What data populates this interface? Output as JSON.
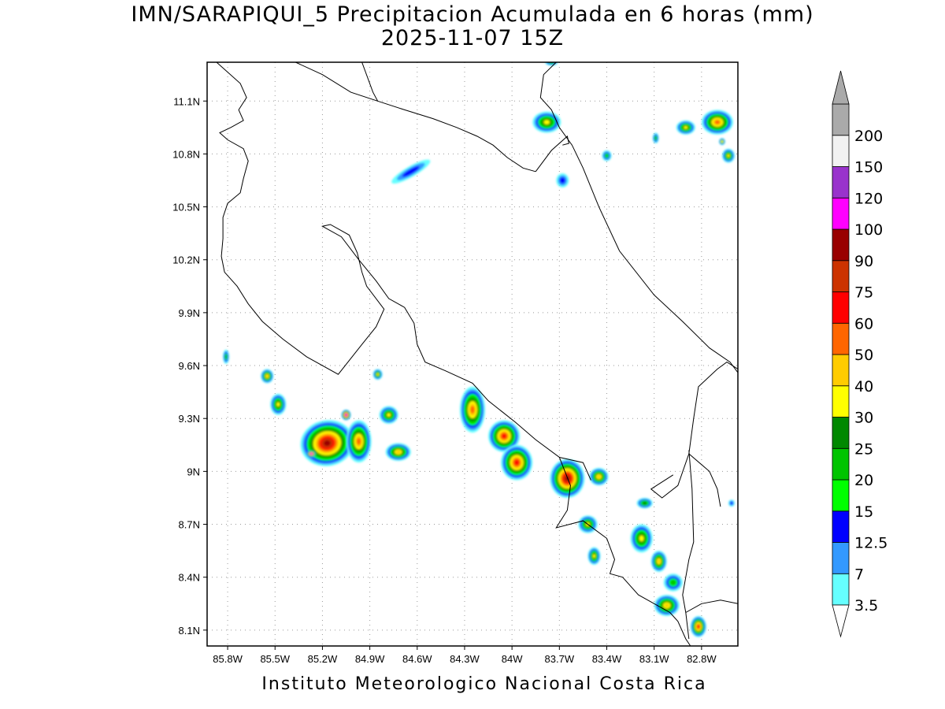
{
  "title_line1": "IMN/SARAPIQUI_5 Precipitacion Acumulada en 6 horas (mm)",
  "title_line2": "2025-11-07 15Z",
  "credit": "Instituto Meteorologico Nacional Costa Rica",
  "map": {
    "lon_range": [
      -85.93,
      -82.57
    ],
    "lat_range": [
      8.01,
      11.32
    ],
    "lon_ticks": [
      {
        "value": -85.8,
        "label": "85.8W"
      },
      {
        "value": -85.5,
        "label": "85.5W"
      },
      {
        "value": -85.2,
        "label": "85.2W"
      },
      {
        "value": -84.9,
        "label": "84.9W"
      },
      {
        "value": -84.6,
        "label": "84.6W"
      },
      {
        "value": -84.3,
        "label": "84.3W"
      },
      {
        "value": -84.0,
        "label": "84W"
      },
      {
        "value": -83.7,
        "label": "83.7W"
      },
      {
        "value": -83.4,
        "label": "83.4W"
      },
      {
        "value": -83.1,
        "label": "83.1W"
      },
      {
        "value": -82.8,
        "label": "82.8W"
      }
    ],
    "lat_ticks": [
      {
        "value": 8.1,
        "label": "8.1N"
      },
      {
        "value": 8.4,
        "label": "8.4N"
      },
      {
        "value": 8.7,
        "label": "8.7N"
      },
      {
        "value": 9.0,
        "label": "9N"
      },
      {
        "value": 9.3,
        "label": "9.3N"
      },
      {
        "value": 9.6,
        "label": "9.6N"
      },
      {
        "value": 9.9,
        "label": "9.9N"
      },
      {
        "value": 10.2,
        "label": "10.2N"
      },
      {
        "value": 10.5,
        "label": "10.5N"
      },
      {
        "value": 10.8,
        "label": "10.8N"
      },
      {
        "value": 11.1,
        "label": "11.1N"
      }
    ],
    "grid": true
  },
  "colorbar": {
    "levels": [
      {
        "label": "3.5",
        "color": "#66ffff"
      },
      {
        "label": "7",
        "color": "#3399ff"
      },
      {
        "label": "12.5",
        "color": "#0000ff"
      },
      {
        "label": "15",
        "color": "#00ff00"
      },
      {
        "label": "20",
        "color": "#00c400"
      },
      {
        "label": "25",
        "color": "#008800"
      },
      {
        "label": "30",
        "color": "#ffff00"
      },
      {
        "label": "40",
        "color": "#ffcc00"
      },
      {
        "label": "50",
        "color": "#ff6600"
      },
      {
        "label": "60",
        "color": "#ff0000"
      },
      {
        "label": "75",
        "color": "#cc3300"
      },
      {
        "label": "90",
        "color": "#990000"
      },
      {
        "label": "100",
        "color": "#ff00ff"
      },
      {
        "label": "120",
        "color": "#9933cc"
      },
      {
        "label": "150",
        "color": "#f2f2f2"
      },
      {
        "label": "200",
        "color": "#aaaaaa"
      }
    ]
  },
  "precip_cells": [
    {
      "lon": -85.17,
      "lat": 9.16,
      "rx": 0.17,
      "ry": 0.13,
      "rot": -10,
      "level": 11
    },
    {
      "lon": -84.97,
      "lat": 9.17,
      "rx": 0.08,
      "ry": 0.12,
      "rot": 0,
      "level": 8
    },
    {
      "lon": -84.72,
      "lat": 9.11,
      "rx": 0.08,
      "ry": 0.05,
      "rot": 0,
      "level": 7
    },
    {
      "lon": -84.78,
      "lat": 9.32,
      "rx": 0.06,
      "ry": 0.05,
      "rot": 0,
      "level": 6
    },
    {
      "lon": -85.48,
      "lat": 9.38,
      "rx": 0.05,
      "ry": 0.06,
      "rot": 0,
      "level": 6
    },
    {
      "lon": -85.55,
      "lat": 9.54,
      "rx": 0.04,
      "ry": 0.04,
      "rot": 0,
      "level": 7
    },
    {
      "lon": -84.85,
      "lat": 9.55,
      "rx": 0.03,
      "ry": 0.03,
      "rot": 0,
      "level": 6
    },
    {
      "lon": -85.81,
      "lat": 9.65,
      "rx": 0.02,
      "ry": 0.04,
      "rot": 0,
      "level": 4
    },
    {
      "lon": -85.05,
      "lat": 9.32,
      "rx": 0.03,
      "ry": 0.03,
      "rot": 0,
      "level": 12
    },
    {
      "lon": -85.27,
      "lat": 9.1,
      "rx": 0.03,
      "ry": 0.02,
      "rot": 0,
      "level": 12
    },
    {
      "lon": -84.25,
      "lat": 9.35,
      "rx": 0.08,
      "ry": 0.13,
      "rot": 0,
      "level": 8
    },
    {
      "lon": -84.05,
      "lat": 9.2,
      "rx": 0.1,
      "ry": 0.09,
      "rot": 0,
      "level": 9
    },
    {
      "lon": -83.97,
      "lat": 9.05,
      "rx": 0.1,
      "ry": 0.1,
      "rot": 0,
      "level": 9
    },
    {
      "lon": -83.65,
      "lat": 8.96,
      "rx": 0.11,
      "ry": 0.11,
      "rot": 0,
      "level": 11
    },
    {
      "lon": -83.45,
      "lat": 8.97,
      "rx": 0.06,
      "ry": 0.05,
      "rot": 0,
      "level": 7
    },
    {
      "lon": -83.52,
      "lat": 8.7,
      "rx": 0.06,
      "ry": 0.05,
      "rot": 0,
      "level": 6
    },
    {
      "lon": -83.48,
      "lat": 8.52,
      "rx": 0.04,
      "ry": 0.05,
      "rot": 0,
      "level": 6
    },
    {
      "lon": -83.18,
      "lat": 8.62,
      "rx": 0.07,
      "ry": 0.08,
      "rot": 0,
      "level": 6
    },
    {
      "lon": -83.07,
      "lat": 8.49,
      "rx": 0.05,
      "ry": 0.06,
      "rot": 0,
      "level": 7
    },
    {
      "lon": -83.02,
      "lat": 8.24,
      "rx": 0.08,
      "ry": 0.06,
      "rot": 0,
      "level": 7
    },
    {
      "lon": -82.82,
      "lat": 8.12,
      "rx": 0.05,
      "ry": 0.06,
      "rot": 0,
      "level": 9
    },
    {
      "lon": -83.78,
      "lat": 10.98,
      "rx": 0.09,
      "ry": 0.06,
      "rot": 0,
      "level": 6
    },
    {
      "lon": -82.7,
      "lat": 10.98,
      "rx": 0.1,
      "ry": 0.07,
      "rot": 0,
      "level": 8
    },
    {
      "lon": -82.9,
      "lat": 10.95,
      "rx": 0.06,
      "ry": 0.04,
      "rot": 0,
      "level": 6
    },
    {
      "lon": -82.63,
      "lat": 10.79,
      "rx": 0.04,
      "ry": 0.04,
      "rot": 0,
      "level": 6
    },
    {
      "lon": -82.67,
      "lat": 10.87,
      "rx": 0.02,
      "ry": 0.02,
      "rot": 0,
      "level": 6
    },
    {
      "lon": -83.4,
      "lat": 10.79,
      "rx": 0.03,
      "ry": 0.03,
      "rot": 0,
      "level": 4
    },
    {
      "lon": -83.09,
      "lat": 10.89,
      "rx": 0.02,
      "ry": 0.03,
      "rot": 0,
      "level": 4
    },
    {
      "lon": -83.75,
      "lat": 11.32,
      "rx": 0.04,
      "ry": 0.02,
      "rot": 0,
      "level": 4
    },
    {
      "lon": -84.64,
      "lat": 10.7,
      "rx": 0.14,
      "ry": 0.03,
      "rot": -30,
      "level": 2
    },
    {
      "lon": -82.61,
      "lat": 8.82,
      "rx": 0.02,
      "ry": 0.02,
      "rot": 0,
      "level": 2
    },
    {
      "lon": -83.16,
      "lat": 8.82,
      "rx": 0.05,
      "ry": 0.03,
      "rot": 0,
      "level": 5
    },
    {
      "lon": -82.98,
      "lat": 8.37,
      "rx": 0.06,
      "ry": 0.05,
      "rot": 0,
      "level": 4
    },
    {
      "lon": -83.68,
      "lat": 10.65,
      "rx": 0.04,
      "ry": 0.04,
      "rot": 0,
      "level": 2
    }
  ],
  "coastlines": [
    [
      [
        -85.87,
        11.32
      ],
      [
        -85.72,
        11.2
      ],
      [
        -85.68,
        11.12
      ],
      [
        -85.73,
        11.05
      ],
      [
        -85.7,
        10.99
      ],
      [
        -85.78,
        10.95
      ],
      [
        -85.85,
        10.92
      ],
      [
        -85.8,
        10.88
      ],
      [
        -85.7,
        10.83
      ],
      [
        -85.67,
        10.76
      ],
      [
        -85.7,
        10.66
      ],
      [
        -85.72,
        10.58
      ],
      [
        -85.8,
        10.52
      ],
      [
        -85.83,
        10.44
      ],
      [
        -85.83,
        10.32
      ],
      [
        -85.84,
        10.22
      ],
      [
        -85.82,
        10.13
      ],
      [
        -85.74,
        10.05
      ],
      [
        -85.67,
        9.95
      ],
      [
        -85.58,
        9.85
      ],
      [
        -85.45,
        9.75
      ],
      [
        -85.3,
        9.65
      ],
      [
        -85.1,
        9.55
      ],
      [
        -84.95,
        9.72
      ],
      [
        -84.86,
        9.82
      ],
      [
        -84.81,
        9.92
      ],
      [
        -84.92,
        10.05
      ],
      [
        -84.95,
        10.13
      ],
      [
        -84.98,
        10.24
      ],
      [
        -85.03,
        10.34
      ],
      [
        -85.15,
        10.4
      ],
      [
        -85.2,
        10.39
      ],
      [
        -85.08,
        10.33
      ],
      [
        -84.97,
        10.2
      ],
      [
        -84.86,
        10.08
      ],
      [
        -84.78,
        9.98
      ],
      [
        -84.68,
        9.93
      ],
      [
        -84.62,
        9.84
      ],
      [
        -84.6,
        9.72
      ],
      [
        -84.55,
        9.62
      ],
      [
        -84.42,
        9.57
      ],
      [
        -84.25,
        9.5
      ],
      [
        -84.15,
        9.4
      ],
      [
        -83.98,
        9.28
      ],
      [
        -83.85,
        9.18
      ],
      [
        -83.7,
        9.08
      ],
      [
        -83.63,
        8.92
      ],
      [
        -83.65,
        8.78
      ],
      [
        -83.72,
        8.68
      ],
      [
        -83.55,
        8.72
      ],
      [
        -83.4,
        8.62
      ],
      [
        -83.35,
        8.5
      ],
      [
        -83.38,
        8.42
      ],
      [
        -83.3,
        8.4
      ],
      [
        -83.2,
        8.3
      ],
      [
        -83.1,
        8.25
      ],
      [
        -83.0,
        8.2
      ],
      [
        -82.95,
        8.15
      ],
      [
        -82.9,
        8.05
      ],
      [
        -82.87,
        8.01
      ]
    ],
    [
      [
        -85.37,
        11.32
      ],
      [
        -85.2,
        11.25
      ],
      [
        -85.02,
        11.15
      ],
      [
        -84.85,
        11.1
      ],
      [
        -84.68,
        11.05
      ],
      [
        -84.5,
        11.0
      ],
      [
        -84.35,
        10.95
      ],
      [
        -84.22,
        10.9
      ],
      [
        -84.12,
        10.85
      ],
      [
        -84.03,
        10.78
      ],
      [
        -83.93,
        10.72
      ],
      [
        -83.85,
        10.7
      ]
    ],
    [
      [
        -84.95,
        11.32
      ],
      [
        -84.88,
        11.15
      ],
      [
        -84.85,
        11.1
      ]
    ],
    [
      [
        -83.85,
        10.7
      ],
      [
        -83.75,
        10.82
      ],
      [
        -83.65,
        10.9
      ],
      [
        -83.64,
        10.86
      ],
      [
        -83.68,
        10.85
      ]
    ],
    [
      [
        -83.72,
        11.32
      ],
      [
        -83.8,
        11.25
      ],
      [
        -83.82,
        11.12
      ],
      [
        -83.75,
        11.05
      ],
      [
        -83.7,
        10.95
      ],
      [
        -83.62,
        10.85
      ],
      [
        -83.55,
        10.72
      ],
      [
        -83.45,
        10.5
      ],
      [
        -83.32,
        10.25
      ],
      [
        -83.1,
        10.0
      ],
      [
        -82.92,
        9.85
      ],
      [
        -82.75,
        9.7
      ],
      [
        -82.62,
        9.62
      ],
      [
        -82.57,
        9.56
      ]
    ],
    [
      [
        -82.57,
        9.58
      ],
      [
        -82.64,
        9.62
      ],
      [
        -82.7,
        9.58
      ],
      [
        -82.82,
        9.48
      ],
      [
        -82.85,
        9.3
      ],
      [
        -82.88,
        9.1
      ],
      [
        -82.95,
        8.92
      ],
      [
        -83.05,
        8.85
      ],
      [
        -83.12,
        8.9
      ],
      [
        -82.98,
        8.98
      ]
    ],
    [
      [
        -82.88,
        9.1
      ],
      [
        -82.75,
        9.0
      ],
      [
        -82.7,
        8.9
      ],
      [
        -82.68,
        8.8
      ]
    ],
    [
      [
        -82.88,
        9.12
      ],
      [
        -82.86,
        8.9
      ],
      [
        -82.85,
        8.6
      ],
      [
        -82.88,
        8.5
      ],
      [
        -82.9,
        8.4
      ],
      [
        -82.92,
        8.3
      ],
      [
        -82.9,
        8.2
      ],
      [
        -82.88,
        8.05
      ]
    ],
    [
      [
        -82.9,
        8.2
      ],
      [
        -82.8,
        8.25
      ],
      [
        -82.68,
        8.27
      ],
      [
        -82.57,
        8.25
      ]
    ],
    [
      [
        -83.7,
        9.08
      ],
      [
        -83.55,
        9.05
      ],
      [
        -83.5,
        8.95
      ]
    ]
  ]
}
